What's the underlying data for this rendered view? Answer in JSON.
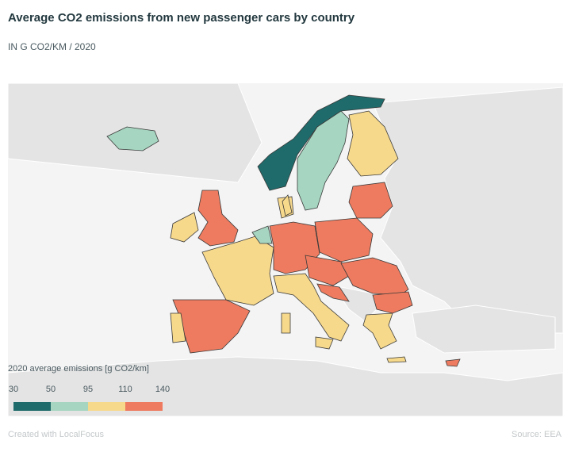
{
  "header": {
    "title": "Average CO2 emissions from new passenger cars by country",
    "subtitle": "IN G CO2/KM / 2020"
  },
  "legend": {
    "title": "2020 average emissions [g CO2/km]",
    "ticks": [
      30,
      50,
      95,
      110,
      140
    ],
    "colors": [
      "#1f6b6b",
      "#a6d6c1",
      "#f7d98c",
      "#ee7b5f"
    ]
  },
  "footer": {
    "credit": "Created with LocalFocus",
    "source": "Source: EEA"
  }
}
